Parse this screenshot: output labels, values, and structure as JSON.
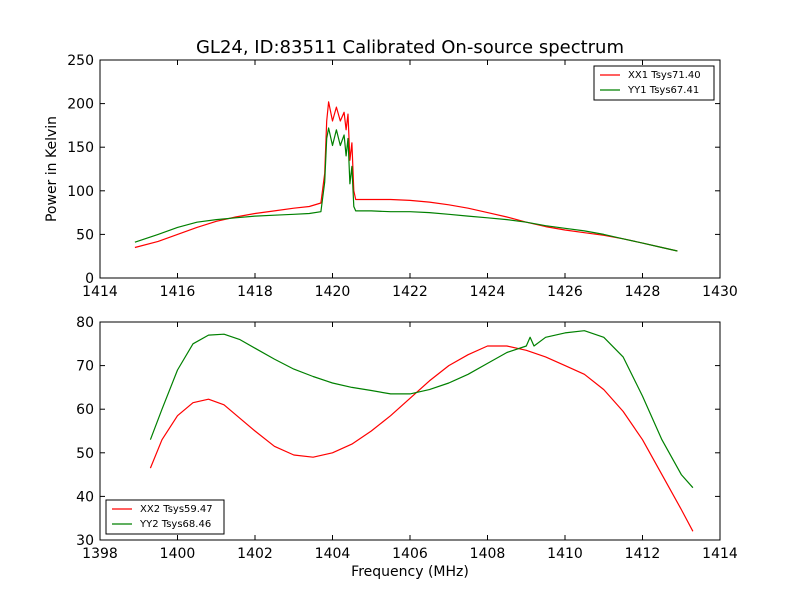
{
  "title": "GL24, ID:83511 Calibrated On-source spectrum",
  "chart_data": [
    {
      "type": "line",
      "ylabel": "Power in Kelvin",
      "xlabel": "",
      "xlim": [
        1414,
        1430
      ],
      "ylim": [
        0,
        250
      ],
      "xticks": [
        "1414",
        "1416",
        "1418",
        "1420",
        "1422",
        "1424",
        "1426",
        "1428",
        "1430"
      ],
      "yticks": [
        "0",
        "50",
        "100",
        "150",
        "200",
        "250"
      ],
      "grid": false,
      "legend_position": "top-right",
      "series": [
        {
          "name": "XX1 Tsys71.40",
          "color": "#ff0000",
          "x": [
            1414.9,
            1415.5,
            1416.0,
            1416.5,
            1417.0,
            1417.5,
            1418.0,
            1418.5,
            1419.0,
            1419.4,
            1419.7,
            1419.8,
            1419.85,
            1419.9,
            1420.0,
            1420.1,
            1420.2,
            1420.3,
            1420.35,
            1420.4,
            1420.45,
            1420.5,
            1420.55,
            1420.6,
            1420.7,
            1421.0,
            1421.5,
            1422.0,
            1422.5,
            1423.0,
            1423.5,
            1424.0,
            1424.5,
            1425.0,
            1425.5,
            1426.0,
            1426.5,
            1427.0,
            1427.5,
            1428.0,
            1428.5,
            1428.9
          ],
          "y": [
            35,
            42,
            50,
            58,
            65,
            70,
            74,
            77,
            80,
            82,
            86,
            120,
            180,
            202,
            180,
            196,
            180,
            190,
            170,
            188,
            135,
            155,
            100,
            90,
            90,
            90,
            90,
            89,
            87,
            84,
            80,
            75,
            70,
            64,
            59,
            55,
            52,
            49,
            45,
            40,
            35,
            31
          ]
        },
        {
          "name": "YY1 Tsys67.41",
          "color": "#008000",
          "x": [
            1414.9,
            1415.5,
            1416.0,
            1416.5,
            1417.0,
            1417.5,
            1418.0,
            1418.5,
            1419.0,
            1419.4,
            1419.7,
            1419.8,
            1419.85,
            1419.9,
            1420.0,
            1420.1,
            1420.2,
            1420.3,
            1420.35,
            1420.4,
            1420.45,
            1420.5,
            1420.55,
            1420.6,
            1420.7,
            1421.0,
            1421.5,
            1422.0,
            1422.5,
            1423.0,
            1423.5,
            1424.0,
            1424.5,
            1425.0,
            1425.5,
            1426.0,
            1426.5,
            1427.0,
            1427.5,
            1428.0,
            1428.5,
            1428.9
          ],
          "y": [
            41,
            50,
            58,
            64,
            67,
            69,
            71,
            72,
            73,
            74,
            76,
            110,
            160,
            172,
            152,
            170,
            152,
            164,
            140,
            160,
            108,
            128,
            82,
            77,
            77,
            77,
            76,
            76,
            75,
            73,
            71,
            69,
            67,
            64,
            60,
            57,
            54,
            50,
            45,
            40,
            35,
            31
          ]
        }
      ]
    },
    {
      "type": "line",
      "ylabel": "",
      "xlabel": "Frequency (MHz)",
      "xlim": [
        1398,
        1414
      ],
      "ylim": [
        30,
        80
      ],
      "xticks": [
        "1398",
        "1400",
        "1402",
        "1404",
        "1406",
        "1408",
        "1410",
        "1412",
        "1414"
      ],
      "yticks": [
        "30",
        "40",
        "50",
        "60",
        "70",
        "80"
      ],
      "grid": false,
      "legend_position": "bottom-left",
      "series": [
        {
          "name": "XX2 Tsys59.47",
          "color": "#ff0000",
          "x": [
            1399.3,
            1399.6,
            1400.0,
            1400.4,
            1400.8,
            1401.2,
            1401.6,
            1402.0,
            1402.5,
            1403.0,
            1403.5,
            1404.0,
            1404.5,
            1405.0,
            1405.5,
            1406.0,
            1406.5,
            1407.0,
            1407.5,
            1408.0,
            1408.5,
            1409.0,
            1409.5,
            1410.0,
            1410.5,
            1411.0,
            1411.5,
            1412.0,
            1412.5,
            1413.0,
            1413.3
          ],
          "y": [
            46.5,
            53,
            58.5,
            61.5,
            62.3,
            61,
            58,
            55,
            51.5,
            49.5,
            49,
            50,
            52,
            55,
            58.5,
            62.5,
            66.5,
            70,
            72.5,
            74.5,
            74.5,
            73.5,
            72,
            70,
            68,
            64.5,
            59.5,
            53,
            45,
            37,
            32
          ]
        },
        {
          "name": "YY2 Tsys68.46",
          "color": "#008000",
          "x": [
            1399.3,
            1399.6,
            1400.0,
            1400.4,
            1400.8,
            1401.2,
            1401.6,
            1402.0,
            1402.5,
            1403.0,
            1403.5,
            1404.0,
            1404.5,
            1405.0,
            1405.5,
            1406.0,
            1406.5,
            1407.0,
            1407.5,
            1408.0,
            1408.5,
            1409.0,
            1409.1,
            1409.2,
            1409.5,
            1410.0,
            1410.5,
            1411.0,
            1411.5,
            1412.0,
            1412.5,
            1413.0,
            1413.3
          ],
          "y": [
            53,
            60,
            69,
            75,
            77,
            77.2,
            76,
            74,
            71.5,
            69.2,
            67.5,
            66,
            65,
            64.3,
            63.5,
            63.5,
            64.5,
            66,
            68,
            70.5,
            73,
            74.5,
            76.5,
            74.5,
            76.5,
            77.5,
            78,
            76.5,
            72,
            63,
            53,
            45,
            42
          ]
        }
      ]
    }
  ]
}
